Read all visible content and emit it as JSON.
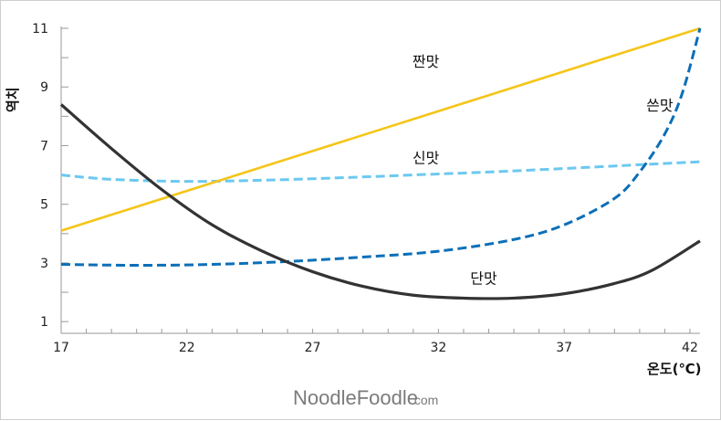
{
  "chart_data": {
    "type": "line",
    "xlabel": "온도(℃)",
    "ylabel": "역치",
    "xlim": [
      17,
      42.4
    ],
    "ylim": [
      0.6,
      11
    ],
    "x_ticks": [
      17,
      22,
      27,
      32,
      37,
      42
    ],
    "y_ticks": [
      1,
      3,
      5,
      7,
      9,
      11
    ],
    "series": [
      {
        "name": "짠맛",
        "color": "#f5c518",
        "style": "solid",
        "x": [
          17,
          42.4
        ],
        "y": [
          4.1,
          11.0
        ]
      },
      {
        "name": "쓴맛",
        "color": "#0b6fb8",
        "style": "dashed",
        "x": [
          17,
          20,
          23,
          26,
          29,
          32,
          35,
          37,
          39,
          40,
          41,
          41.7,
          42.4
        ],
        "y": [
          2.95,
          2.92,
          2.95,
          3.05,
          3.2,
          3.4,
          3.8,
          4.3,
          5.2,
          6.1,
          7.4,
          8.8,
          11.0
        ]
      },
      {
        "name": "신맛",
        "color": "#6cc8f0",
        "style": "dashed",
        "x": [
          17,
          19,
          22,
          25,
          28,
          31,
          34,
          37,
          40,
          42.4
        ],
        "y": [
          6.0,
          5.85,
          5.78,
          5.82,
          5.9,
          6.0,
          6.1,
          6.22,
          6.35,
          6.45
        ]
      },
      {
        "name": "단맛",
        "color": "#333333",
        "style": "solid",
        "x": [
          17,
          19,
          21,
          23,
          25,
          27,
          29,
          31,
          33,
          35,
          37,
          39,
          40.5,
          42.4
        ],
        "y": [
          8.4,
          6.9,
          5.5,
          4.3,
          3.4,
          2.7,
          2.2,
          1.9,
          1.8,
          1.8,
          1.95,
          2.3,
          2.75,
          3.75
        ]
      }
    ],
    "annotations": [
      {
        "text": "짠맛",
        "x": 31.5,
        "y": 9.7
      },
      {
        "text": "쓴맛",
        "x": 40.8,
        "y": 8.2
      },
      {
        "text": "신맛",
        "x": 31.5,
        "y": 6.4
      },
      {
        "text": "단맛",
        "x": 33.8,
        "y": 2.3
      }
    ],
    "grid": false,
    "legend": "none"
  },
  "watermark": {
    "text": "NoodleFoodle",
    "suffix": ".com"
  }
}
